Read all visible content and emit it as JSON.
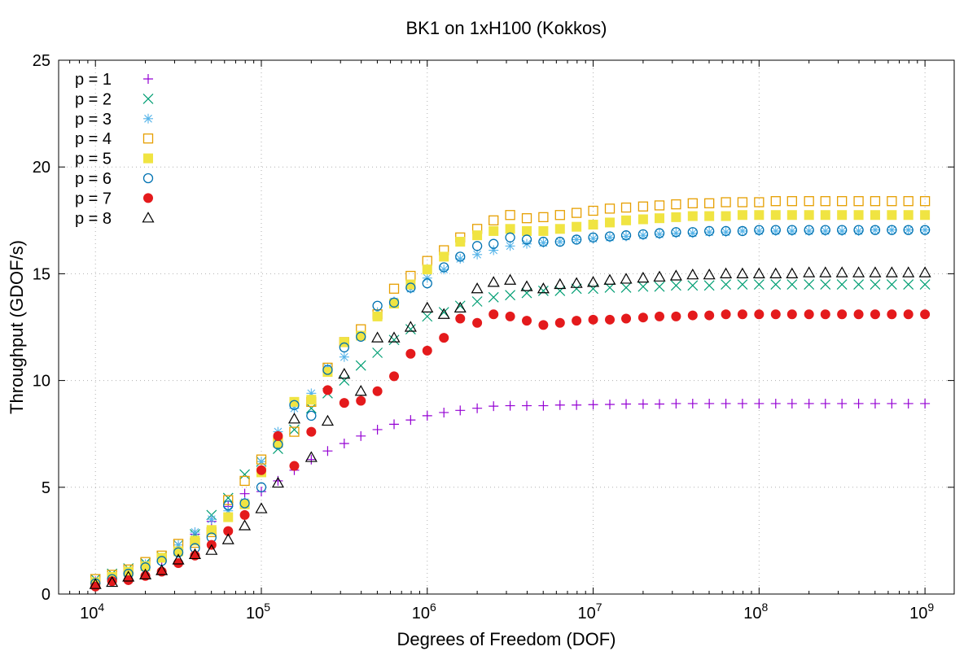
{
  "chart_data": {
    "type": "scatter",
    "title": "BK1 on 1xH100 (Kokkos)",
    "xlabel": "Degrees of Freedom (DOF)",
    "ylabel": "Throughput (GDOF/s)",
    "xscale": "log",
    "xlim": [
      6000,
      1500000000
    ],
    "ylim": [
      0,
      25
    ],
    "grid": true,
    "legend_position": "top-left",
    "x_ticks": [
      {
        "base": "10",
        "exp": "4",
        "value": 10000
      },
      {
        "base": "10",
        "exp": "5",
        "value": 100000
      },
      {
        "base": "10",
        "exp": "6",
        "value": 1000000
      },
      {
        "base": "10",
        "exp": "7",
        "value": 10000000
      },
      {
        "base": "10",
        "exp": "8",
        "value": 100000000
      },
      {
        "base": "10",
        "exp": "9",
        "value": 1000000000
      }
    ],
    "y_ticks": [
      "0",
      "5",
      "10",
      "15",
      "20",
      "25"
    ],
    "x": [
      10000,
      12600,
      15800,
      20000,
      25100,
      31600,
      39800,
      50100,
      63100,
      79400,
      100000,
      126000,
      158000,
      200000,
      251000,
      316000,
      398000,
      501000,
      631000,
      794000,
      1000000,
      1260000,
      1580000,
      2000000,
      2510000,
      3160000,
      3980000,
      5010000,
      6310000,
      7940000,
      10000000,
      12600000,
      15800000,
      20000000,
      25100000,
      31600000,
      39800000,
      50100000,
      63100000,
      79400000,
      100000000,
      126000000,
      158000000,
      200000000,
      251000000,
      316000000,
      398000000,
      501000000,
      631000000,
      794000000,
      1000000000
    ],
    "series": [
      {
        "name": "p = 1",
        "marker": "plus",
        "color": "#9400d3",
        "values": [
          0.6,
          0.8,
          1.0,
          1.3,
          1.6,
          2.2,
          2.8,
          3.4,
          4.1,
          4.7,
          4.8,
          5.3,
          5.8,
          6.3,
          6.7,
          7.05,
          7.4,
          7.7,
          7.95,
          8.15,
          8.35,
          8.5,
          8.6,
          8.7,
          8.8,
          8.82,
          8.82,
          8.82,
          8.85,
          8.85,
          8.87,
          8.88,
          8.9,
          8.9,
          8.9,
          8.92,
          8.92,
          8.92,
          8.92,
          8.92,
          8.92,
          8.92,
          8.92,
          8.92,
          8.92,
          8.92,
          8.92,
          8.92,
          8.92,
          8.92,
          8.92
        ]
      },
      {
        "name": "p = 2",
        "marker": "cross",
        "color": "#009e73",
        "values": [
          0.7,
          0.95,
          1.2,
          1.45,
          1.75,
          2.3,
          2.8,
          3.7,
          4.5,
          5.6,
          6.2,
          6.8,
          7.7,
          8.7,
          9.4,
          10.0,
          10.7,
          11.3,
          11.9,
          12.4,
          13.0,
          13.2,
          13.5,
          13.7,
          13.9,
          14.0,
          14.1,
          14.2,
          14.2,
          14.3,
          14.3,
          14.35,
          14.35,
          14.4,
          14.4,
          14.45,
          14.45,
          14.45,
          14.5,
          14.5,
          14.5,
          14.5,
          14.5,
          14.5,
          14.5,
          14.5,
          14.5,
          14.5,
          14.5,
          14.5,
          14.5
        ]
      },
      {
        "name": "p = 3",
        "marker": "star",
        "color": "#56b4e9",
        "values": [
          0.55,
          0.8,
          1.05,
          1.4,
          1.7,
          2.3,
          2.9,
          3.5,
          3.9,
          4.3,
          6.2,
          7.6,
          8.7,
          9.4,
          10.6,
          11.1,
          12.1,
          13.2,
          13.7,
          14.3,
          14.8,
          15.2,
          15.7,
          15.9,
          16.1,
          16.3,
          16.4,
          16.45,
          16.5,
          16.6,
          16.65,
          16.7,
          16.75,
          16.8,
          16.85,
          16.9,
          16.9,
          16.95,
          16.95,
          17.0,
          17.0,
          17.0,
          17.0,
          17.0,
          17.0,
          17.0,
          17.0,
          17.05,
          17.05,
          17.05,
          17.05
        ]
      },
      {
        "name": "p = 4",
        "marker": "open-square",
        "color": "#e69f00",
        "values": [
          0.7,
          0.9,
          1.15,
          1.5,
          1.8,
          2.35,
          2.4,
          2.9,
          4.4,
          5.3,
          6.3,
          7.1,
          7.6,
          9.0,
          10.6,
          11.8,
          12.4,
          13.1,
          14.3,
          14.9,
          15.6,
          16.1,
          16.7,
          17.1,
          17.5,
          17.75,
          17.6,
          17.65,
          17.75,
          17.85,
          17.95,
          18.05,
          18.1,
          18.15,
          18.2,
          18.25,
          18.3,
          18.3,
          18.35,
          18.35,
          18.35,
          18.4,
          18.4,
          18.4,
          18.4,
          18.4,
          18.4,
          18.4,
          18.4,
          18.4,
          18.4
        ]
      },
      {
        "name": "p = 5",
        "marker": "filled-square",
        "color": "#f0e442",
        "values": [
          0.55,
          0.8,
          1.05,
          1.3,
          1.7,
          2.0,
          2.5,
          3.0,
          3.6,
          4.2,
          5.7,
          7.1,
          9.0,
          9.1,
          10.4,
          11.8,
          12.1,
          13.0,
          13.6,
          14.5,
          15.2,
          15.8,
          16.5,
          16.8,
          17.0,
          17.1,
          17.0,
          17.0,
          17.1,
          17.2,
          17.3,
          17.4,
          17.5,
          17.55,
          17.6,
          17.65,
          17.7,
          17.7,
          17.7,
          17.75,
          17.75,
          17.75,
          17.75,
          17.75,
          17.75,
          17.75,
          17.75,
          17.75,
          17.75,
          17.75,
          17.75
        ]
      },
      {
        "name": "p = 6",
        "marker": "open-circle",
        "color": "#0072b2",
        "values": [
          0.5,
          0.7,
          0.95,
          1.25,
          1.55,
          1.95,
          2.15,
          2.65,
          4.15,
          4.25,
          5.0,
          7.0,
          8.85,
          8.35,
          10.5,
          11.55,
          12.05,
          13.5,
          13.65,
          14.35,
          14.55,
          15.3,
          15.8,
          16.3,
          16.4,
          16.7,
          16.6,
          16.5,
          16.5,
          16.6,
          16.7,
          16.75,
          16.8,
          16.85,
          16.9,
          16.95,
          16.95,
          17.0,
          17.0,
          17.0,
          17.05,
          17.05,
          17.05,
          17.05,
          17.05,
          17.05,
          17.05,
          17.05,
          17.05,
          17.05,
          17.05
        ]
      },
      {
        "name": "p = 7",
        "marker": "filled-circle",
        "color": "#e41a1c",
        "values": [
          0.35,
          0.6,
          0.65,
          0.85,
          1.05,
          1.45,
          1.8,
          2.3,
          2.95,
          3.7,
          5.8,
          7.4,
          6.0,
          7.6,
          9.55,
          8.95,
          9.05,
          9.5,
          10.2,
          11.25,
          11.4,
          12.0,
          12.9,
          12.7,
          13.1,
          13.0,
          12.8,
          12.6,
          12.7,
          12.8,
          12.85,
          12.85,
          12.9,
          12.95,
          13.0,
          13.0,
          13.05,
          13.05,
          13.1,
          13.1,
          13.1,
          13.1,
          13.1,
          13.1,
          13.1,
          13.1,
          13.1,
          13.1,
          13.1,
          13.1,
          13.1
        ]
      },
      {
        "name": "p = 8",
        "marker": "open-triangle",
        "color": "#000000",
        "values": [
          0.45,
          0.55,
          0.8,
          0.9,
          1.1,
          1.6,
          1.85,
          2.05,
          2.55,
          3.2,
          4.0,
          5.2,
          8.2,
          6.4,
          8.1,
          10.3,
          9.5,
          12.0,
          12.0,
          12.5,
          13.4,
          13.1,
          13.4,
          14.3,
          14.6,
          14.7,
          14.4,
          14.3,
          14.5,
          14.55,
          14.6,
          14.7,
          14.75,
          14.8,
          14.85,
          14.9,
          14.95,
          14.95,
          15.0,
          15.0,
          15.0,
          15.0,
          15.0,
          15.05,
          15.05,
          15.05,
          15.05,
          15.05,
          15.05,
          15.05,
          15.05
        ]
      }
    ]
  }
}
